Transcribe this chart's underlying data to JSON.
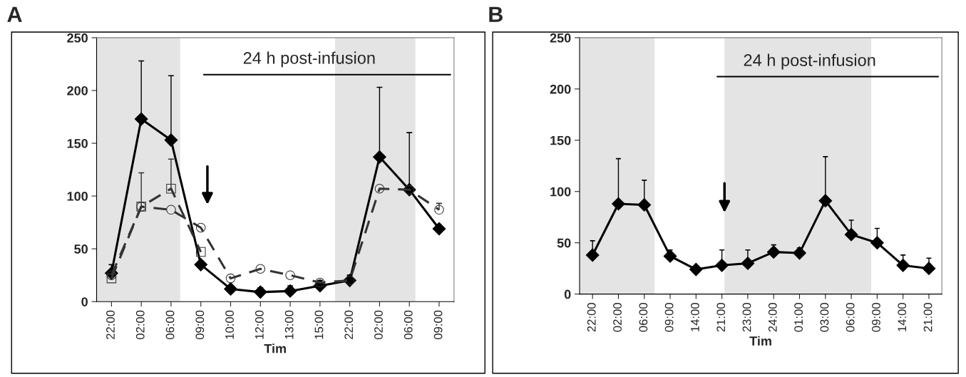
{
  "chart_data": [
    {
      "type": "line",
      "title": "A",
      "xlabel": "Tim",
      "categories": [
        "22:00",
        "02:00",
        "06:00",
        "09:00",
        "10:00",
        "12:00",
        "13:00",
        "15:00",
        "22:00",
        "02:00",
        "06:00",
        "09:00"
      ],
      "ylim": [
        0,
        250
      ],
      "yticks": [
        0,
        50,
        100,
        150,
        200,
        250
      ],
      "grid": false,
      "series": [
        {
          "color": "#000000",
          "marker": "diamond",
          "line_style": "solid",
          "values": [
            27,
            173,
            153,
            35,
            12,
            9,
            10,
            15,
            20,
            137,
            106,
            69
          ],
          "errors": [
            [
              27,
              35
            ],
            [
              173,
              228
            ],
            [
              153,
              214
            ],
            null,
            null,
            [
              9,
              13
            ],
            [
              10,
              15
            ],
            [
              15,
              20
            ],
            [
              20,
              25
            ],
            [
              137,
              203
            ],
            [
              106,
              160
            ],
            null
          ]
        },
        {
          "color": "#333333",
          "marker": "square",
          "line_style": "dashed",
          "values": [
            22,
            90,
            107,
            47,
            null,
            null,
            null,
            null,
            null,
            null,
            null,
            null
          ],
          "errors": [
            null,
            [
              90,
              122
            ],
            [
              107,
              135
            ],
            null,
            null,
            null,
            null,
            null,
            null,
            null,
            null,
            null
          ]
        },
        {
          "color": "#333333",
          "marker": "circle",
          "line_style": "dashed",
          "values": [
            25,
            90,
            87,
            70,
            22,
            31,
            25,
            18,
            20,
            107,
            106,
            87
          ],
          "errors": [
            null,
            null,
            null,
            null,
            null,
            null,
            null,
            null,
            null,
            null,
            null,
            [
              87,
              93
            ]
          ]
        }
      ],
      "ref_lines": [
        {
          "axis": "y",
          "value": 215,
          "label": "24 h post-infusion",
          "color": "#000000"
        }
      ]
    },
    {
      "type": "line",
      "title": "B",
      "xlabel": "Tim",
      "categories": [
        "22:00",
        "02:00",
        "06:00",
        "09:00",
        "14:00",
        "21:00",
        "23:00",
        "24:00",
        "01:00",
        "03:00",
        "06:00",
        "09:00",
        "14:00",
        "21:00"
      ],
      "ylim": [
        0,
        250
      ],
      "yticks": [
        0,
        50,
        100,
        150,
        200,
        250
      ],
      "grid": false,
      "series": [
        {
          "color": "#000000",
          "marker": "diamond",
          "line_style": "solid",
          "values": [
            38,
            88,
            87,
            37,
            24,
            28,
            30,
            41,
            40,
            91,
            58,
            50,
            28,
            25
          ],
          "errors": [
            [
              38,
              52
            ],
            [
              88,
              132
            ],
            [
              87,
              111
            ],
            [
              37,
              43
            ],
            null,
            [
              28,
              43
            ],
            [
              30,
              43
            ],
            [
              41,
              48
            ],
            [
              40,
              45
            ],
            [
              91,
              134
            ],
            [
              58,
              72
            ],
            [
              50,
              64
            ],
            [
              28,
              38
            ],
            [
              25,
              35
            ]
          ]
        }
      ],
      "ref_lines": [
        {
          "axis": "y",
          "value": 212,
          "label": "24 h post-infusion",
          "color": "#000000"
        }
      ]
    }
  ]
}
